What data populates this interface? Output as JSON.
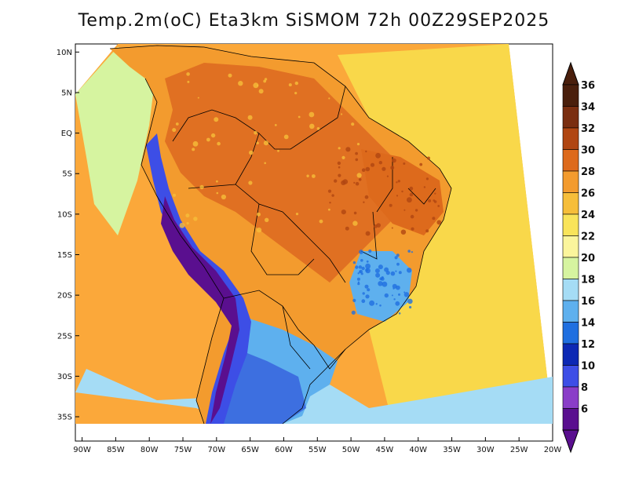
{
  "title": "Temp.2m(oC) Eta3km SiSMOM 72h 00Z29SEP2025",
  "axes": {
    "lat_labels": [
      "10N",
      "5N",
      "EQ",
      "5S",
      "10S",
      "15S",
      "20S",
      "25S",
      "30S",
      "35S"
    ],
    "lat_values": [
      10,
      5,
      0,
      -5,
      -10,
      -15,
      -20,
      -25,
      -30,
      -35
    ],
    "lon_labels": [
      "90W",
      "85W",
      "80W",
      "75W",
      "70W",
      "65W",
      "60W",
      "55W",
      "50W",
      "45W",
      "40W",
      "35W",
      "30W",
      "25W",
      "20W"
    ],
    "lon_values": [
      -90,
      -85,
      -80,
      -75,
      -70,
      -65,
      -60,
      -55,
      -50,
      -45,
      -40,
      -35,
      -30,
      -25,
      -20
    ],
    "lat_range": [
      -38,
      11
    ],
    "lon_range": [
      -91,
      -20
    ]
  },
  "colorbar": {
    "labels": [
      "36",
      "34",
      "32",
      "30",
      "28",
      "26",
      "24",
      "22",
      "20",
      "18",
      "16",
      "14",
      "12",
      "10",
      "8",
      "6"
    ],
    "colors": [
      "#4a1f0c",
      "#7a2e10",
      "#b04612",
      "#dd6a1c",
      "#f39b2e",
      "#f6be3a",
      "#f9e45a",
      "#fbf59c",
      "#d6f4a0",
      "#a5dcf5",
      "#5eb0ee",
      "#1f6fe0",
      "#0c28b4",
      "#3d4ee6",
      "#8a3dc8",
      "#5a0f8f"
    ],
    "over_color": "#4a1f0c",
    "under_color": "#5a0f8f"
  },
  "map": {
    "ocean_west_color": "#fba83a",
    "ocean_east_color": "#f9d84a",
    "ocean_south_cool": "#a5dcf5",
    "land_warm": "#f39b2e",
    "land_hot": "#e07022",
    "andes_cold": "#5a0f8f",
    "south_cool": "#3d6fe0"
  }
}
